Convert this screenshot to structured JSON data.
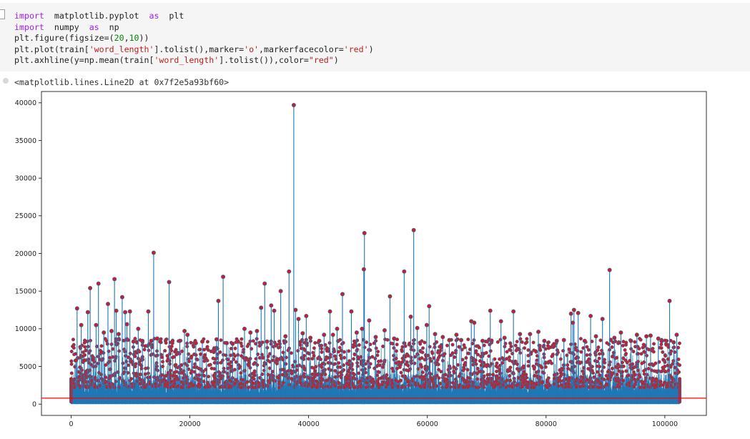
{
  "code_cell": {
    "lines": [
      [
        {
          "t": "import",
          "c": "kw"
        },
        {
          "t": "  matplotlib.pyplot  "
        },
        {
          "t": "as",
          "c": "kw"
        },
        {
          "t": "  plt"
        }
      ],
      [
        {
          "t": "import",
          "c": "kw"
        },
        {
          "t": "  numpy  "
        },
        {
          "t": "as",
          "c": "kw"
        },
        {
          "t": "  np"
        }
      ],
      [
        {
          "t": "plt.figure(figsize=("
        },
        {
          "t": "20",
          "c": "num"
        },
        {
          "t": ","
        },
        {
          "t": "10",
          "c": "num"
        },
        {
          "t": "))"
        }
      ],
      [
        {
          "t": "plt.plot(train["
        },
        {
          "t": "'word_length'",
          "c": "str"
        },
        {
          "t": "].tolist(),marker="
        },
        {
          "t": "'o'",
          "c": "str"
        },
        {
          "t": ",markerfacecolor="
        },
        {
          "t": "'red'",
          "c": "str"
        },
        {
          "t": ")"
        }
      ],
      [
        {
          "t": "plt.axhline(y=np.mean(train["
        },
        {
          "t": "'word_length'",
          "c": "str"
        },
        {
          "t": "].tolist()),color="
        },
        {
          "t": "\"red\"",
          "c": "str"
        },
        {
          "t": ")"
        }
      ]
    ]
  },
  "output_text": "<matplotlib.lines.Line2D at 0x7f2e5a93bf60>",
  "chart_data": {
    "type": "line",
    "title": "",
    "xlabel": "",
    "ylabel": "",
    "xlim": [
      -5000,
      107000
    ],
    "ylim": [
      -1500,
      41500
    ],
    "x_ticks": [
      0,
      20000,
      40000,
      60000,
      80000,
      100000
    ],
    "y_ticks": [
      0,
      5000,
      10000,
      15000,
      20000,
      25000,
      30000,
      35000,
      40000
    ],
    "grid": false,
    "legend": "none",
    "series": [
      {
        "line_color": "#1f77b4",
        "marker": "o",
        "marker_face_color": "red",
        "x_range": [
          0,
          102500
        ],
        "points": [
          [
            800,
            5800
          ],
          [
            1000,
            12700
          ],
          [
            1700,
            10500
          ],
          [
            2200,
            5800
          ],
          [
            2800,
            12200
          ],
          [
            3200,
            15400
          ],
          [
            3700,
            5900
          ],
          [
            4200,
            10500
          ],
          [
            4600,
            16000
          ],
          [
            5100,
            6900
          ],
          [
            5500,
            9500
          ],
          [
            6200,
            13300
          ],
          [
            6800,
            9700
          ],
          [
            7300,
            16600
          ],
          [
            7600,
            12400
          ],
          [
            8000,
            9300
          ],
          [
            8600,
            14200
          ],
          [
            9100,
            12200
          ],
          [
            9400,
            10600
          ],
          [
            9900,
            12300
          ],
          [
            10500,
            8300
          ],
          [
            11300,
            10000
          ],
          [
            12000,
            8400
          ],
          [
            13000,
            12300
          ],
          [
            13500,
            8400
          ],
          [
            13900,
            20100
          ],
          [
            14500,
            8700
          ],
          [
            15000,
            8300
          ],
          [
            16500,
            16200
          ],
          [
            18300,
            8400
          ],
          [
            19100,
            9700
          ],
          [
            19600,
            9200
          ],
          [
            21000,
            8100
          ],
          [
            22100,
            8300
          ],
          [
            24500,
            8600
          ],
          [
            24800,
            13700
          ],
          [
            25600,
            16900
          ],
          [
            26200,
            8100
          ],
          [
            27200,
            8000
          ],
          [
            28100,
            8300
          ],
          [
            29200,
            10000
          ],
          [
            30200,
            9500
          ],
          [
            31300,
            9700
          ],
          [
            32000,
            12800
          ],
          [
            32600,
            16000
          ],
          [
            33000,
            8300
          ],
          [
            33700,
            13100
          ],
          [
            34200,
            12400
          ],
          [
            35300,
            15000
          ],
          [
            36100,
            9000
          ],
          [
            36700,
            17600
          ],
          [
            37500,
            39700
          ],
          [
            37800,
            12500
          ],
          [
            38300,
            11300
          ],
          [
            39000,
            9400
          ],
          [
            39600,
            11700
          ],
          [
            40300,
            8800
          ],
          [
            41800,
            8400
          ],
          [
            42600,
            9200
          ],
          [
            43600,
            12300
          ],
          [
            44100,
            9200
          ],
          [
            44800,
            10000
          ],
          [
            45700,
            14600
          ],
          [
            47200,
            12300
          ],
          [
            48100,
            9500
          ],
          [
            49000,
            10000
          ],
          [
            49300,
            17900
          ],
          [
            49400,
            22700
          ],
          [
            50200,
            11100
          ],
          [
            51300,
            8900
          ],
          [
            52800,
            9800
          ],
          [
            53700,
            14300
          ],
          [
            54400,
            8700
          ],
          [
            56100,
            17600
          ],
          [
            57200,
            11600
          ],
          [
            57700,
            23100
          ],
          [
            58300,
            10100
          ],
          [
            59900,
            10500
          ],
          [
            60300,
            13000
          ],
          [
            61300,
            9300
          ],
          [
            62600,
            8900
          ],
          [
            63700,
            8500
          ],
          [
            64900,
            9200
          ],
          [
            65700,
            8500
          ],
          [
            67400,
            11000
          ],
          [
            67900,
            10800
          ],
          [
            69300,
            8400
          ],
          [
            70600,
            12400
          ],
          [
            72400,
            11000
          ],
          [
            73000,
            8800
          ],
          [
            74500,
            12300
          ],
          [
            75600,
            9300
          ],
          [
            77300,
            9300
          ],
          [
            78700,
            9600
          ],
          [
            79700,
            8400
          ],
          [
            81800,
            8400
          ],
          [
            83000,
            8500
          ],
          [
            84200,
            12000
          ],
          [
            84500,
            10800
          ],
          [
            84700,
            12500
          ],
          [
            85400,
            12100
          ],
          [
            86500,
            8400
          ],
          [
            87500,
            11700
          ],
          [
            88400,
            9000
          ],
          [
            89500,
            11300
          ],
          [
            90700,
            17800
          ],
          [
            91500,
            8800
          ],
          [
            92600,
            9500
          ],
          [
            94300,
            8400
          ],
          [
            95300,
            9200
          ],
          [
            96900,
            9000
          ],
          [
            97600,
            9100
          ],
          [
            98900,
            8700
          ],
          [
            100800,
            13700
          ],
          [
            101500,
            8200
          ],
          [
            102000,
            9200
          ]
        ]
      }
    ],
    "axhline": {
      "y": 790,
      "color": "red"
    }
  }
}
